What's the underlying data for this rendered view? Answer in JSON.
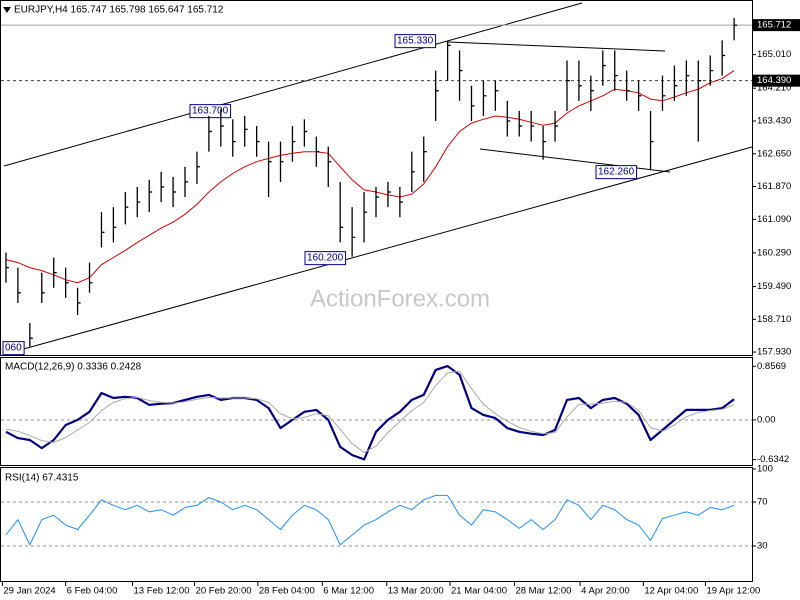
{
  "chart_data": [
    {
      "type": "ohlc",
      "title": "EURJPY,H4  165.747 165.798 165.647 165.712",
      "watermark": "ActionForex.com",
      "color": "#000000",
      "xlim": [
        -0.5,
        62.5
      ],
      "ylim": [
        157.86,
        166.31
      ],
      "yticks": [
        {
          "value": 165.01,
          "label": "165.010"
        },
        {
          "value": 164.21,
          "label": "164.210"
        },
        {
          "value": 163.43,
          "label": "163.430"
        },
        {
          "value": 162.65,
          "label": "162.650"
        },
        {
          "value": 161.87,
          "label": "161.870"
        },
        {
          "value": 161.09,
          "label": "161.090"
        },
        {
          "value": 160.29,
          "label": "160.290"
        },
        {
          "value": 159.49,
          "label": "159.490"
        },
        {
          "value": 158.71,
          "label": "158.710"
        },
        {
          "value": 157.93,
          "label": "157.930"
        }
      ],
      "high": [
        160.3,
        159.94,
        158.62,
        159.82,
        160.18,
        159.94,
        159.46,
        160.06,
        161.26,
        161.38,
        161.74,
        161.86,
        162.03,
        162.22,
        162.1,
        162.34,
        162.7,
        163.55,
        163.71,
        163.47,
        163.55,
        163.31,
        162.94,
        162.94,
        163.31,
        163.47,
        163.06,
        162.82,
        161.98,
        161.38,
        161.74,
        161.86,
        161.98,
        161.86,
        162.7,
        163.06,
        164.63,
        165.33,
        165.11,
        164.27,
        164.39,
        164.39,
        163.91,
        163.67,
        163.67,
        163.31,
        163.67,
        164.87,
        164.87,
        164.51,
        165.11,
        165.11,
        164.63,
        164.39,
        163.67,
        164.51,
        164.75,
        164.87,
        164.87,
        164.99,
        165.35,
        165.88
      ],
      "low": [
        159.58,
        159.1,
        158.06,
        159.1,
        159.46,
        159.22,
        158.81,
        159.34,
        160.42,
        160.54,
        160.97,
        161.14,
        161.26,
        161.5,
        161.38,
        161.62,
        161.93,
        162.7,
        162.82,
        162.58,
        162.82,
        162.58,
        161.62,
        161.98,
        162.46,
        162.82,
        162.34,
        161.86,
        160.54,
        160.2,
        160.54,
        161.14,
        161.38,
        161.14,
        161.74,
        161.98,
        163.43,
        164.39,
        163.91,
        163.43,
        163.55,
        163.67,
        163.06,
        163.06,
        162.94,
        162.51,
        162.94,
        163.67,
        163.91,
        163.67,
        164.27,
        164.15,
        163.91,
        163.67,
        162.26,
        163.67,
        163.91,
        164.03,
        162.94,
        164.27,
        164.51,
        165.35
      ],
      "close": [
        159.94,
        159.34,
        158.26,
        159.34,
        159.82,
        159.58,
        159.1,
        159.58,
        160.78,
        160.9,
        161.38,
        161.5,
        161.74,
        161.86,
        161.74,
        161.98,
        162.34,
        163.18,
        163.31,
        162.94,
        163.23,
        162.94,
        162.46,
        162.46,
        162.94,
        163.18,
        162.7,
        162.46,
        160.9,
        160.66,
        161.26,
        161.62,
        161.74,
        161.5,
        162.22,
        162.7,
        164.15,
        165.23,
        164.63,
        163.79,
        164.03,
        164.15,
        163.43,
        163.31,
        163.31,
        162.94,
        163.31,
        164.39,
        164.27,
        164.15,
        164.75,
        164.51,
        164.15,
        164.03,
        162.94,
        164.03,
        164.27,
        164.51,
        164.39,
        164.63,
        164.99,
        165.71
      ],
      "ma": {
        "color": "#d40000",
        "values": [
          160.13,
          160.06,
          159.94,
          159.87,
          159.77,
          159.65,
          159.58,
          159.7,
          160.01,
          160.18,
          160.35,
          160.54,
          160.71,
          160.88,
          161.02,
          161.21,
          161.45,
          161.74,
          161.98,
          162.18,
          162.34,
          162.46,
          162.54,
          162.61,
          162.66,
          162.7,
          162.7,
          162.66,
          162.34,
          162.03,
          161.79,
          161.74,
          161.67,
          161.62,
          161.69,
          161.93,
          162.34,
          162.82,
          163.18,
          163.38,
          163.47,
          163.55,
          163.52,
          163.47,
          163.4,
          163.33,
          163.38,
          163.62,
          163.79,
          163.91,
          164.03,
          164.19,
          164.15,
          164.1,
          163.95,
          163.91,
          164.0,
          164.1,
          164.19,
          164.34,
          164.44,
          164.63
        ]
      },
      "price_lines": [
        {
          "value": 165.712,
          "label": "165.712",
          "style": "solid"
        },
        {
          "value": 164.39,
          "label": "164.390",
          "style": "dashed"
        }
      ],
      "annotations": [
        "163.700",
        "165.330",
        "160.200",
        "162.260",
        "060"
      ]
    },
    {
      "type": "line",
      "title": "MACD(12,26,9) 0.3336 0.2428",
      "xlim": [
        -0.5,
        62.5
      ],
      "ylim": [
        -0.72,
        0.99
      ],
      "yticks": [
        0.8569,
        {
          "value": 0,
          "label": "0.00"
        },
        -0.6342
      ],
      "grid": [
        false,
        true,
        false
      ],
      "series": [
        {
          "color": "#000080",
          "line_width": 2.2,
          "values": [
            -0.19,
            -0.29,
            -0.32,
            -0.45,
            -0.32,
            -0.08,
            0.0,
            0.13,
            0.43,
            0.35,
            0.37,
            0.35,
            0.24,
            0.26,
            0.27,
            0.32,
            0.37,
            0.4,
            0.32,
            0.35,
            0.35,
            0.32,
            0.19,
            -0.13,
            0.0,
            0.13,
            0.16,
            0.0,
            -0.43,
            -0.56,
            -0.63,
            -0.19,
            0.0,
            0.13,
            0.32,
            0.4,
            0.8,
            0.86,
            0.72,
            0.19,
            0.08,
            0.03,
            -0.13,
            -0.19,
            -0.22,
            -0.24,
            -0.16,
            0.32,
            0.35,
            0.19,
            0.32,
            0.35,
            0.26,
            0.08,
            -0.32,
            -0.16,
            0.0,
            0.16,
            0.16,
            0.16,
            0.19,
            0.33
          ]
        },
        {
          "color": "#a9a9a9",
          "line_width": 1,
          "values": [
            -0.15,
            -0.18,
            -0.25,
            -0.33,
            -0.36,
            -0.28,
            -0.16,
            -0.04,
            0.15,
            0.28,
            0.34,
            0.36,
            0.31,
            0.28,
            0.27,
            0.29,
            0.33,
            0.36,
            0.35,
            0.35,
            0.35,
            0.34,
            0.28,
            0.1,
            0.02,
            0.04,
            0.1,
            0.07,
            -0.15,
            -0.38,
            -0.52,
            -0.42,
            -0.2,
            -0.02,
            0.15,
            0.28,
            0.55,
            0.75,
            0.78,
            0.5,
            0.25,
            0.1,
            -0.02,
            -0.12,
            -0.18,
            -0.22,
            -0.2,
            0.05,
            0.25,
            0.25,
            0.27,
            0.3,
            0.28,
            0.15,
            -0.12,
            -0.18,
            -0.08,
            0.05,
            0.12,
            0.15,
            0.17,
            0.24
          ]
        }
      ]
    },
    {
      "type": "line",
      "title": "RSI(14) 67.4315",
      "xlim": [
        -0.5,
        62.5
      ],
      "ylim": [
        0,
        100
      ],
      "yticks": [
        100,
        70,
        30
      ],
      "grid": [
        false,
        true,
        true
      ],
      "xticks": [
        {
          "value": -0.3,
          "label": "29 Jan 2024"
        },
        {
          "value": 5.0,
          "label": "6 Feb 04:00"
        },
        {
          "value": 10.6,
          "label": "13 Feb 12:00"
        },
        {
          "value": 15.8,
          "label": "20 Feb 20:00"
        },
        {
          "value": 21.1,
          "label": "28 Feb 04:00"
        },
        {
          "value": 26.5,
          "label": "6 Mar 12:00"
        },
        {
          "value": 31.9,
          "label": "13 Mar 20:00"
        },
        {
          "value": 37.2,
          "label": "21 Mar 04:00"
        },
        {
          "value": 42.6,
          "label": "28 Mar 12:00"
        },
        {
          "value": 48.1,
          "label": "4 Apr 20:00"
        },
        {
          "value": 53.4,
          "label": "12 Apr 04:00"
        },
        {
          "value": 58.6,
          "label": "19 Apr 12:00"
        }
      ],
      "series": [
        {
          "color": "#1e90ff",
          "line_width": 1,
          "values": [
            40,
            54,
            31,
            54,
            58,
            49,
            45,
            58,
            72,
            67,
            63,
            67,
            61,
            63,
            58,
            65,
            67,
            74,
            70,
            63,
            67,
            63,
            54,
            45,
            58,
            67,
            63,
            54,
            31,
            40,
            49,
            54,
            61,
            67,
            63,
            72,
            76,
            76,
            58,
            49,
            63,
            61,
            54,
            46,
            54,
            45,
            54,
            72,
            67,
            54,
            67,
            63,
            54,
            49,
            35,
            55,
            58,
            61,
            58,
            65,
            63,
            67
          ]
        }
      ]
    }
  ]
}
